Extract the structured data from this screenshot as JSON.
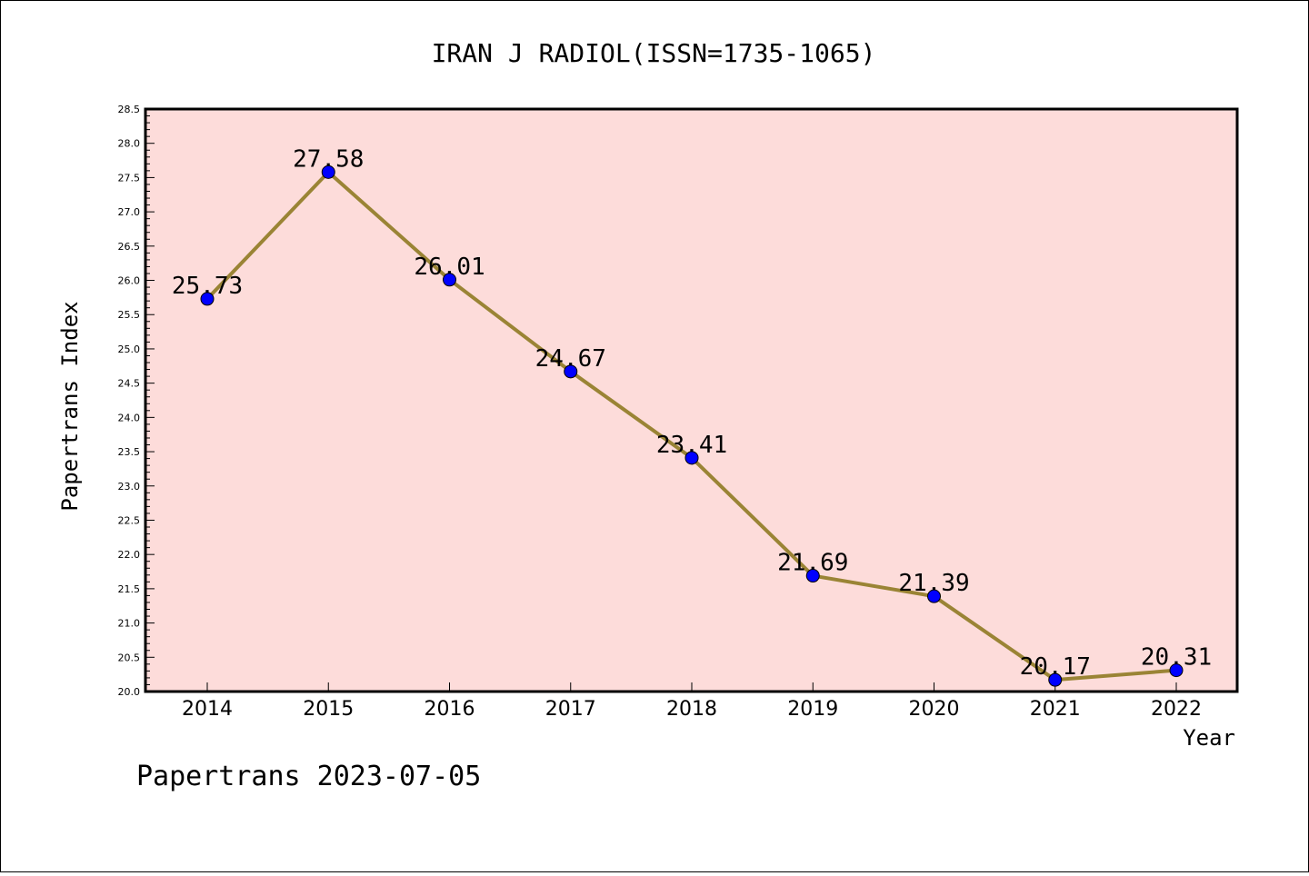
{
  "chart_data": {
    "type": "line",
    "title": "IRAN J RADIOL(ISSN=1735-1065)",
    "xlabel": "Year",
    "ylabel": "Papertrans Index",
    "categories": [
      "2014",
      "2015",
      "2016",
      "2017",
      "2018",
      "2019",
      "2020",
      "2021",
      "2022"
    ],
    "series": [
      {
        "values": [
          25.73,
          27.58,
          26.01,
          24.67,
          23.41,
          21.69,
          21.39,
          20.17,
          20.31
        ],
        "labels": [
          "25.73",
          "27.58",
          "26.01",
          "24.67",
          "23.41",
          "21.69",
          "21.39",
          "20.17",
          "20.31"
        ]
      }
    ],
    "ylim": [
      20.0,
      28.5
    ],
    "yticks": [
      "20.0",
      "20.5",
      "21.0",
      "21.5",
      "22.0",
      "22.5",
      "23.0",
      "23.5",
      "24.0",
      "24.5",
      "25.0",
      "25.5",
      "26.0",
      "26.5",
      "27.0",
      "27.5",
      "28.0",
      "28.5"
    ],
    "grid": false,
    "colors": {
      "plot_background": "#fddcda",
      "line": "#9a8435",
      "marker": "#0000ff"
    },
    "footer": "Papertrans 2023-07-05"
  }
}
